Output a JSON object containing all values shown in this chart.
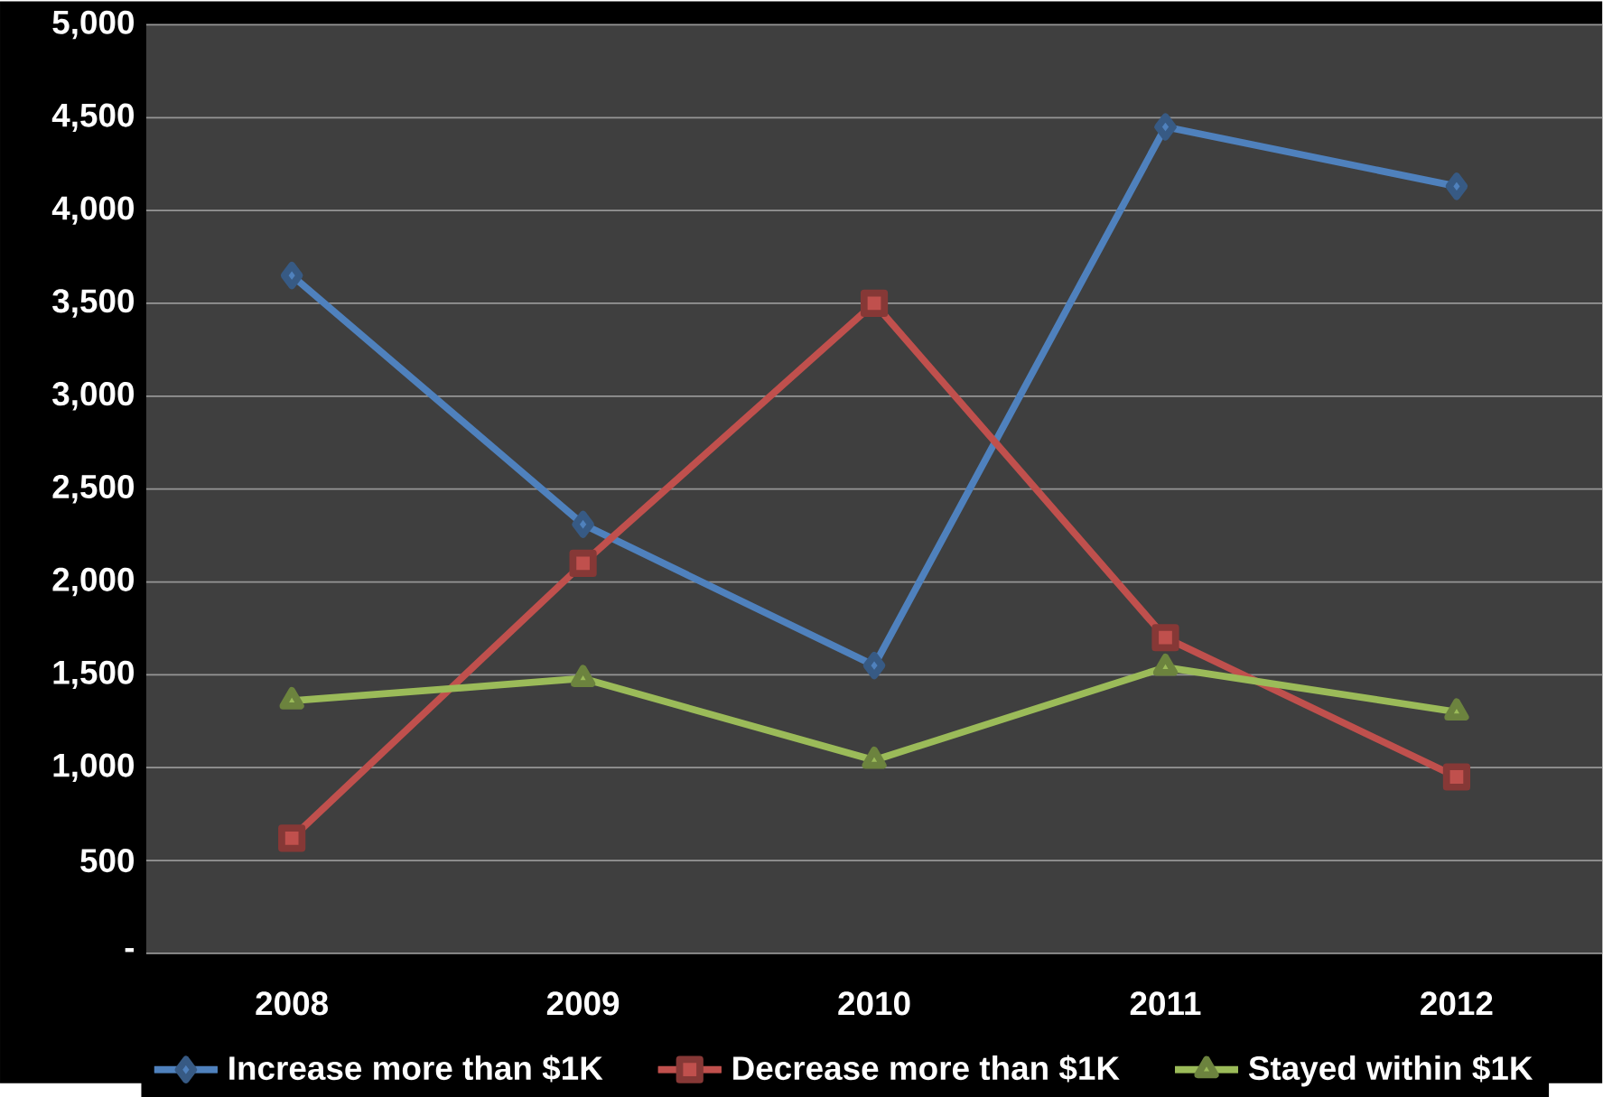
{
  "chart_data": {
    "type": "line",
    "categories": [
      "2008",
      "2009",
      "2010",
      "2011",
      "2012"
    ],
    "series": [
      {
        "name": "Increase more than $1K",
        "color": "#4f81bd",
        "marker": "diamond",
        "values": [
          3650,
          2310,
          1550,
          4450,
          4130
        ]
      },
      {
        "name": "Decrease more than $1K",
        "color": "#c0504d",
        "marker": "square",
        "values": [
          620,
          2100,
          3500,
          1700,
          950
        ]
      },
      {
        "name": "Stayed within $1K",
        "color": "#9bbb59",
        "marker": "triangle",
        "values": [
          1360,
          1480,
          1040,
          1540,
          1300
        ]
      }
    ],
    "ylim": [
      0,
      5000
    ],
    "yticks": [
      {
        "value": 0,
        "label": "-"
      },
      {
        "value": 500,
        "label": "500"
      },
      {
        "value": 1000,
        "label": "1,000"
      },
      {
        "value": 1500,
        "label": "1,500"
      },
      {
        "value": 2000,
        "label": "2,000"
      },
      {
        "value": 2500,
        "label": "2,500"
      },
      {
        "value": 3000,
        "label": "3,000"
      },
      {
        "value": 3500,
        "label": "3,500"
      },
      {
        "value": 4000,
        "label": "4,000"
      },
      {
        "value": 4500,
        "label": "4,500"
      },
      {
        "value": 5000,
        "label": "5,000"
      }
    ],
    "grid": "y",
    "legend": "bottom",
    "line_style": "solid"
  }
}
